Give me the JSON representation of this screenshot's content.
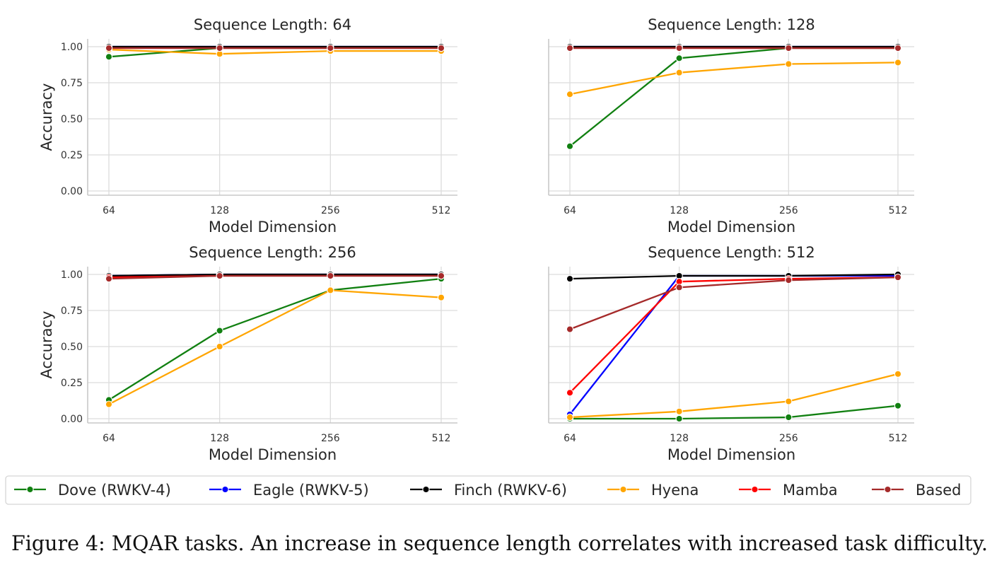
{
  "chart_data": {
    "type": "line",
    "x": [
      64,
      128,
      256,
      512
    ],
    "xlabel": "Model Dimension",
    "ylabel": "Accuracy",
    "ylim": [
      0,
      1
    ],
    "yticks": [
      "0.00",
      "0.25",
      "0.50",
      "0.75",
      "1.00"
    ],
    "xticks": [
      "64",
      "128",
      "256",
      "512"
    ],
    "series_styles": [
      {
        "name": "Dove (RWKV-4)",
        "color": "#118011"
      },
      {
        "name": "Eagle (RWKV-5)",
        "color": "#0000ff"
      },
      {
        "name": "Finch (RWKV-6)",
        "color": "#000000"
      },
      {
        "name": "Hyena",
        "color": "#ffa500"
      },
      {
        "name": "Mamba",
        "color": "#ff0000"
      },
      {
        "name": "Based",
        "color": "#a52a2a"
      }
    ],
    "panels": [
      {
        "title": "Sequence Length: 64",
        "show_ylabel": true,
        "series": [
          {
            "name": "Dove (RWKV-4)",
            "values": [
              0.93,
              0.99,
              0.99,
              0.99
            ]
          },
          {
            "name": "Eagle (RWKV-5)",
            "values": [
              1.0,
              1.0,
              1.0,
              1.0
            ]
          },
          {
            "name": "Finch (RWKV-6)",
            "values": [
              1.0,
              1.0,
              1.0,
              1.0
            ]
          },
          {
            "name": "Hyena",
            "values": [
              0.98,
              0.95,
              0.97,
              0.97
            ]
          },
          {
            "name": "Mamba",
            "values": [
              0.99,
              0.99,
              0.99,
              0.99
            ]
          },
          {
            "name": "Based",
            "values": [
              0.99,
              0.99,
              0.99,
              0.99
            ]
          }
        ]
      },
      {
        "title": "Sequence Length: 128",
        "show_ylabel": false,
        "series": [
          {
            "name": "Dove (RWKV-4)",
            "values": [
              0.31,
              0.92,
              0.99,
              0.99
            ]
          },
          {
            "name": "Eagle (RWKV-5)",
            "values": [
              1.0,
              1.0,
              1.0,
              1.0
            ]
          },
          {
            "name": "Finch (RWKV-6)",
            "values": [
              1.0,
              1.0,
              1.0,
              1.0
            ]
          },
          {
            "name": "Hyena",
            "values": [
              0.67,
              0.82,
              0.88,
              0.89
            ]
          },
          {
            "name": "Mamba",
            "values": [
              0.99,
              0.99,
              0.99,
              0.99
            ]
          },
          {
            "name": "Based",
            "values": [
              0.99,
              0.99,
              0.99,
              0.99
            ]
          }
        ]
      },
      {
        "title": "Sequence Length: 256",
        "show_ylabel": true,
        "series": [
          {
            "name": "Dove (RWKV-4)",
            "values": [
              0.13,
              0.61,
              0.89,
              0.97
            ]
          },
          {
            "name": "Eagle (RWKV-5)",
            "values": [
              0.99,
              1.0,
              1.0,
              1.0
            ]
          },
          {
            "name": "Finch (RWKV-6)",
            "values": [
              0.99,
              1.0,
              1.0,
              1.0
            ]
          },
          {
            "name": "Hyena",
            "values": [
              0.1,
              0.5,
              0.89,
              0.84
            ]
          },
          {
            "name": "Mamba",
            "values": [
              0.98,
              0.99,
              0.99,
              0.99
            ]
          },
          {
            "name": "Based",
            "values": [
              0.97,
              0.99,
              0.99,
              0.99
            ]
          }
        ]
      },
      {
        "title": "Sequence Length: 512",
        "show_ylabel": false,
        "series": [
          {
            "name": "Dove (RWKV-4)",
            "values": [
              0.0,
              0.0,
              0.01,
              0.09
            ]
          },
          {
            "name": "Eagle (RWKV-5)",
            "values": [
              0.03,
              0.99,
              0.99,
              0.99
            ]
          },
          {
            "name": "Finch (RWKV-6)",
            "values": [
              0.97,
              0.99,
              0.99,
              1.0
            ]
          },
          {
            "name": "Hyena",
            "values": [
              0.01,
              0.05,
              0.12,
              0.31
            ]
          },
          {
            "name": "Mamba",
            "values": [
              0.18,
              0.95,
              0.97,
              0.98
            ]
          },
          {
            "name": "Based",
            "values": [
              0.62,
              0.91,
              0.96,
              0.98
            ]
          }
        ]
      }
    ],
    "legend": [
      "Dove (RWKV-4)",
      "Eagle (RWKV-5)",
      "Finch (RWKV-6)",
      "Hyena",
      "Mamba",
      "Based"
    ]
  },
  "caption": "Figure 4: MQAR tasks. An increase in sequence length correlates with increased task difficulty."
}
